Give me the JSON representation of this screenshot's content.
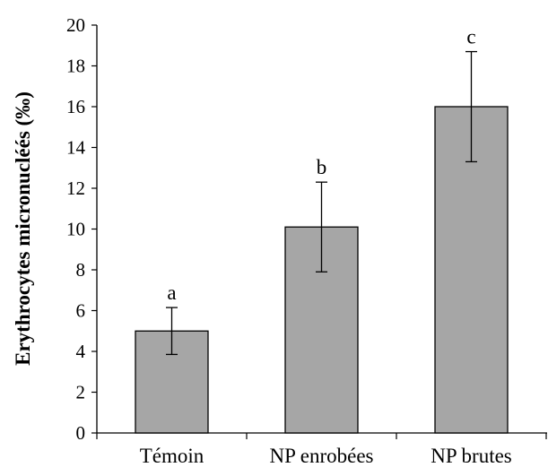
{
  "chart_data": {
    "type": "bar",
    "title": "",
    "xlabel": "",
    "ylabel": "Erythrocytes micronucléés (‰)",
    "categories": [
      "Témoin",
      "NP enrobées",
      "NP brutes"
    ],
    "values": [
      5.0,
      10.1,
      16.0
    ],
    "error": [
      1.15,
      2.2,
      2.7
    ],
    "significance_labels": [
      "a",
      "b",
      "c"
    ],
    "ylim": [
      0,
      20
    ],
    "yticks": [
      0,
      2,
      4,
      6,
      8,
      10,
      12,
      14,
      16,
      18,
      20
    ],
    "grid": false,
    "legend": "none",
    "bar_color": "#a6a6a6",
    "bar_edge_color": "#000000"
  }
}
